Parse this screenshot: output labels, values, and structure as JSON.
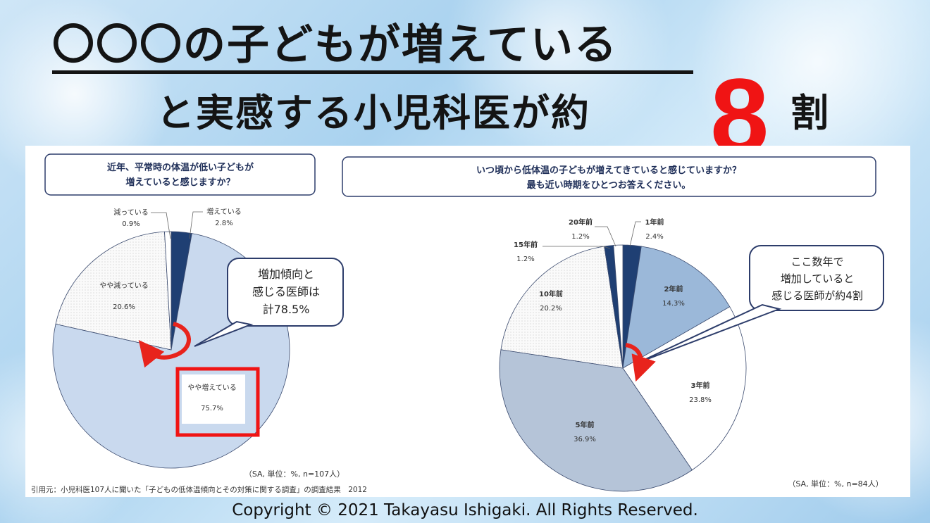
{
  "title": {
    "line1": "〇〇〇の子どもが増えている",
    "line2": "と実感する小児科医が約",
    "highlight_number": "8",
    "suffix": "割"
  },
  "colors": {
    "accent_red": "#f01414",
    "dark_blue": "#1f3f73",
    "light_blue": "#c9d9ee",
    "mid_blue": "#9bb8d9",
    "gray_blue": "#b5c4d8",
    "frame_navy": "#2d3d6b"
  },
  "chart_data": [
    {
      "type": "pie",
      "question": [
        "近年、平常時の体温が低い子どもが",
        "増えていると感じますか？"
      ],
      "slices": [
        {
          "label": "増えている",
          "value": 2.8,
          "display": "2.8%"
        },
        {
          "label": "やや増えている",
          "value": 75.7,
          "display": "75.7%"
        },
        {
          "label": "やや減っている",
          "value": 20.6,
          "display": "20.6%"
        },
        {
          "label": "減っている",
          "value": 0.9,
          "display": "0.9%"
        }
      ],
      "callout": [
        "増加傾向と",
        "感じる医師は",
        "計78.5%"
      ],
      "note": "（SA, 単位：%, n=107人）"
    },
    {
      "type": "pie",
      "question": [
        "いつ頃から低体温の子どもが増えてきていると感じていますか？",
        "最も近い時期をひとつお答えください。"
      ],
      "slices": [
        {
          "label": "1年前",
          "value": 2.4,
          "display": "2.4%"
        },
        {
          "label": "2年前",
          "value": 14.3,
          "display": "14.3%"
        },
        {
          "label": "3年前",
          "value": 23.8,
          "display": "23.8%"
        },
        {
          "label": "5年前",
          "value": 36.9,
          "display": "36.9%"
        },
        {
          "label": "10年前",
          "value": 20.2,
          "display": "20.2%"
        },
        {
          "label": "15年前",
          "value": 1.2,
          "display": "1.2%"
        },
        {
          "label": "20年前",
          "value": 1.2,
          "display": "1.2%"
        }
      ],
      "callout": [
        "ここ数年で",
        "増加していると",
        "感じる医師が約4割"
      ],
      "note": "（SA, 単位：%, n=84人）"
    }
  ],
  "source": "引用元：小児科医107人に聞いた「子どもの低体温傾向とその対策に関する調査」の調査結果　2012",
  "copyright": "Copyright © 2021 Takayasu Ishigaki. All Rights Reserved."
}
